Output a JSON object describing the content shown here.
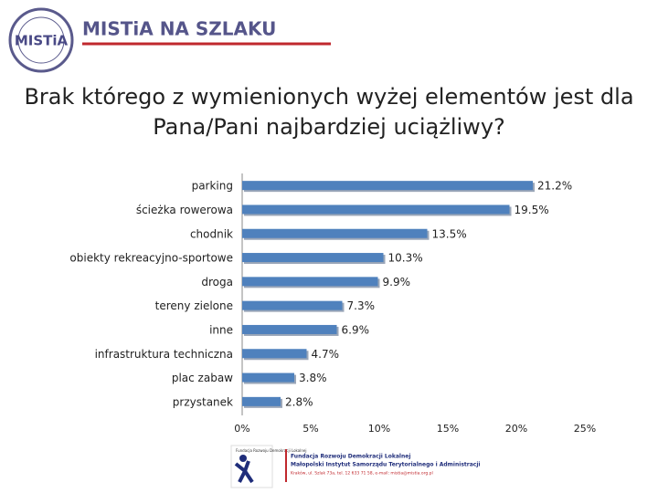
{
  "header": {
    "title": "MISTiA NA SZLAKU",
    "logo": "MISTiA"
  },
  "chart_data": {
    "type": "hbar",
    "title": "Brak którego z wymienionych wyżej elementów jest dla Pana/Pani najbardziej uciążliwy?",
    "categories": [
      "parking",
      "ścieżka rowerowa",
      "chodnik",
      "obiekty rekreacyjno-sportowe",
      "droga",
      "tereny zielone",
      "inne",
      "infrastruktura techniczna",
      "plac zabaw",
      "przystanek"
    ],
    "values": [
      21.2,
      19.5,
      13.5,
      10.3,
      9.9,
      7.3,
      6.9,
      4.7,
      3.8,
      2.8
    ],
    "value_labels": [
      "21.2%",
      "19.5%",
      "13.5%",
      "10.3%",
      "9.9%",
      "7.3%",
      "6.9%",
      "4.7%",
      "3.8%",
      "2.8%"
    ],
    "color": "#4f81bd",
    "xlim": [
      0,
      25
    ],
    "xticks": [
      {
        "value": 0,
        "label": "0%"
      },
      {
        "value": 5,
        "label": "5%"
      },
      {
        "value": 10,
        "label": "10%"
      },
      {
        "value": 15,
        "label": "15%"
      },
      {
        "value": 20,
        "label": "20%"
      },
      {
        "value": 25,
        "label": "25%"
      }
    ]
  },
  "footer": {
    "logo_text": "Fundacja Rozwoju Demokracji Lokalnej",
    "lines": [
      "Fundacja Rozwoju Demokracji Lokalnej",
      "Małopolski Instytut Samorządu Terytorialnego i Administracji",
      "Kraków, ul. Szlak 73a, tel. 12 633 71 58, e-mail: mistia@mistia.org.pl"
    ]
  }
}
